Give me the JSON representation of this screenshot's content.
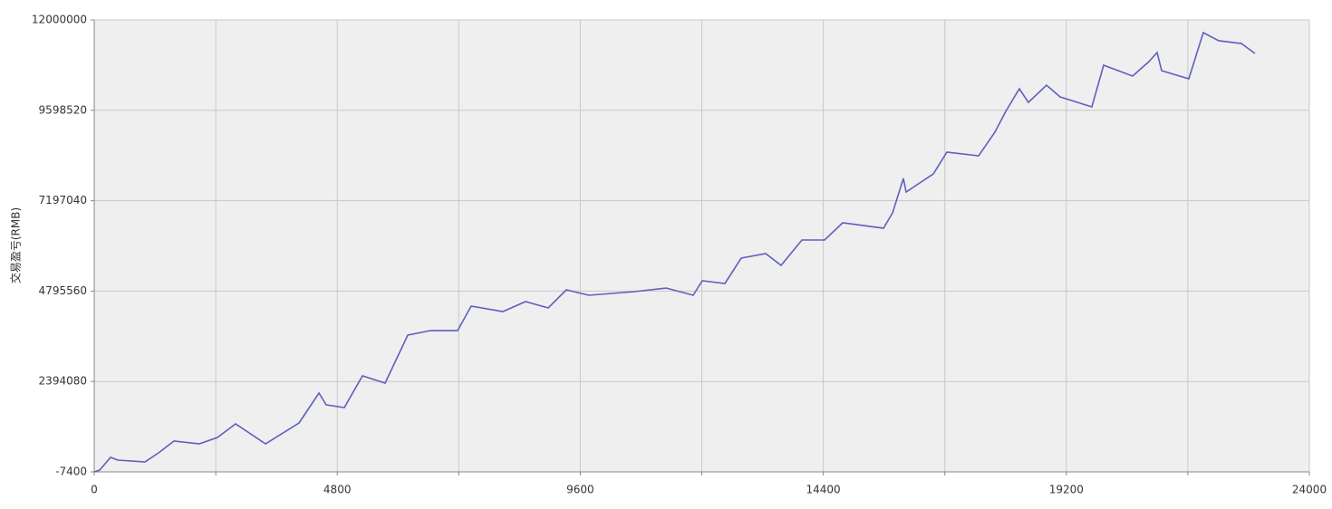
{
  "chart_data": {
    "type": "line",
    "y_label": "交易盈亏(RMB)",
    "x": [
      0,
      107,
      322,
      465,
      1002,
      1271,
      1575,
      2076,
      2434,
      2792,
      3383,
      4045,
      4439,
      4582,
      4940,
      5298,
      5745,
      6193,
      6640,
      7177,
      7445,
      8072,
      8519,
      8967,
      9325,
      9772,
      10667,
      11294,
      11830,
      12009,
      12457,
      12779,
      13262,
      13566,
      13978,
      14425,
      14783,
      15589,
      15768,
      15982,
      16036,
      16573,
      16841,
      17467,
      17789,
      18004,
      18272,
      18451,
      18809,
      19078,
      19704,
      19937,
      20509,
      20832,
      20993,
      21082,
      21619,
      21905,
      22210,
      22657,
      22925
    ],
    "series": [
      {
        "color": "#5f5fbf",
        "values": [
          -7400,
          40700,
          377600,
          305400,
          257300,
          497900,
          810700,
          738500,
          907000,
          1268000,
          738500,
          1292000,
          2086000,
          1773000,
          1701000,
          2543000,
          2351000,
          3626000,
          3746000,
          3746000,
          4396000,
          4252000,
          4516000,
          4348000,
          4829000,
          4685000,
          4781000,
          4877000,
          4685000,
          5070000,
          4998000,
          5672000,
          5792000,
          5479000,
          6153000,
          6153000,
          6610000,
          6466000,
          6875000,
          7789000,
          7428000,
          7909000,
          8487000,
          8390000,
          9016000,
          9570000,
          10171000,
          9810000,
          10267000,
          9954000,
          9690000,
          10797000,
          10508000,
          10893000,
          11134000,
          10653000,
          10436000,
          11663000,
          11447000,
          11374000,
          11110000
        ]
      }
    ],
    "xlim": [
      0,
      24000
    ],
    "xticks": [
      0,
      4800,
      9600,
      14400,
      19200,
      24000
    ],
    "x_minor_grid": [
      2400,
      7200,
      12000,
      16800,
      21600
    ],
    "ylim": [
      -7400,
      12000000
    ],
    "yticks": [
      -7400,
      2394080,
      4795560,
      7197040,
      9598520,
      12000000
    ],
    "grid": true
  }
}
